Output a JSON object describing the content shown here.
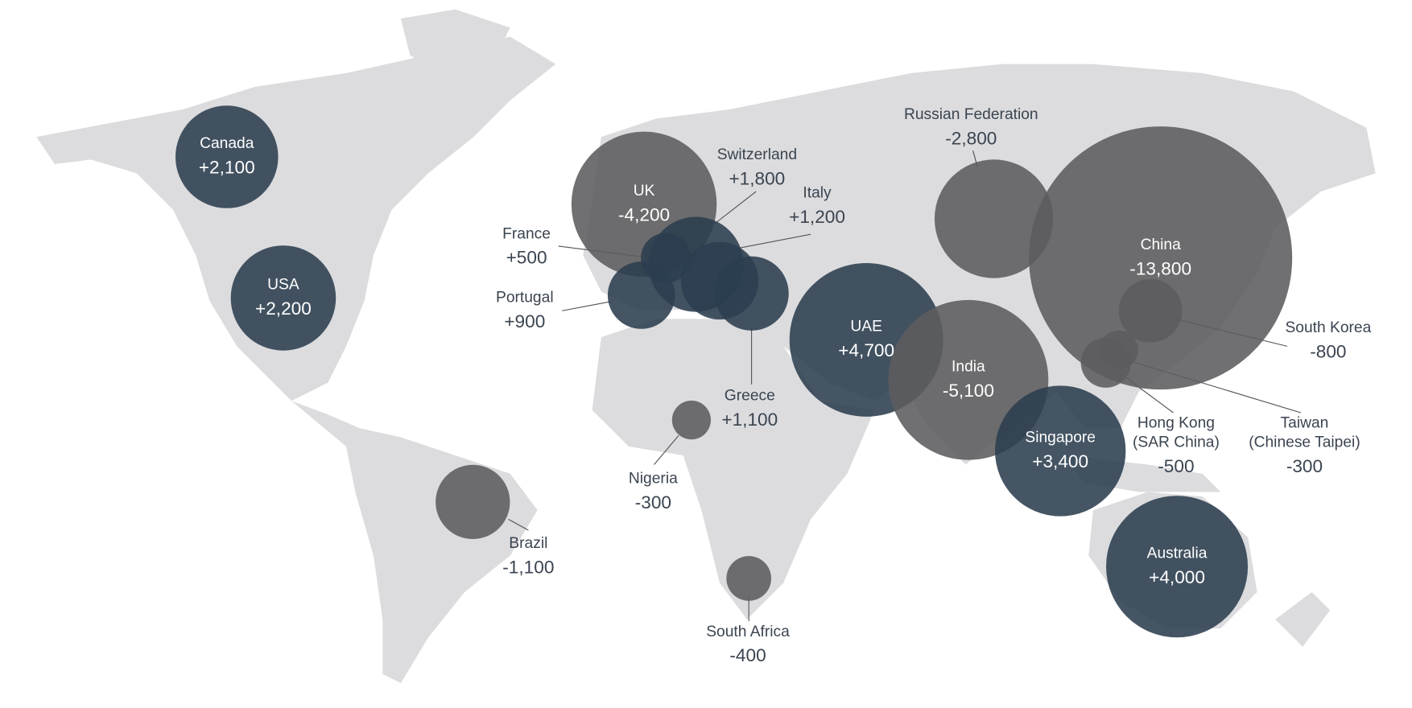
{
  "chart_data": {
    "type": "bubble-map",
    "categories": [
      "Canada",
      "USA",
      "UK",
      "Switzerland",
      "Italy",
      "France",
      "Portugal",
      "Greece",
      "Nigeria",
      "Brazil",
      "South Africa",
      "UAE",
      "India",
      "Russian Federation",
      "China",
      "South Korea",
      [
        "Hong Kong",
        "(SAR China)"
      ],
      [
        "Taiwan",
        "(Chinese Taipei)"
      ],
      "Singapore",
      "Australia"
    ],
    "values": [
      2100,
      2200,
      -4200,
      1800,
      1200,
      500,
      900,
      1100,
      -300,
      -1100,
      -400,
      4700,
      -5100,
      -2800,
      -13800,
      -800,
      -500,
      -300,
      3400,
      4000
    ],
    "value_labels": [
      "+2,100",
      "+2,200",
      "-4,200",
      "+1,800",
      "+1,200",
      "+500",
      "+900",
      "+1,100",
      "-300",
      "-1,100",
      "-400",
      "+4,700",
      "-5,100",
      "-2,800",
      "-13,800",
      "-800",
      "-500",
      "-300",
      "+3,400",
      "+4,000"
    ],
    "positive_color": "#2b3d4f",
    "negative_color": "#5c5c5e"
  }
}
